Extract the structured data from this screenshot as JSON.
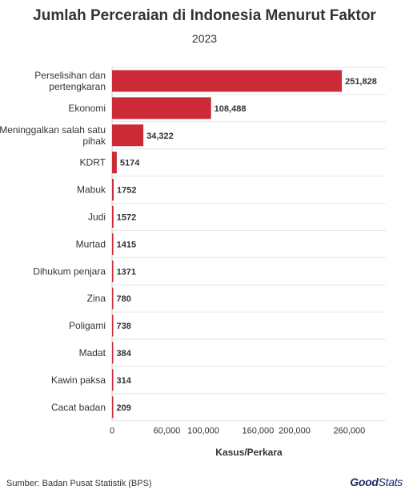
{
  "chart_data": {
    "type": "bar",
    "orientation": "horizontal",
    "title": "Jumlah Perceraian di Indonesia Menurut Faktor",
    "subtitle": "2023",
    "categories": [
      [
        "Perselisihan dan",
        "pertengkaran"
      ],
      [
        "Ekonomi"
      ],
      [
        "Meninggalkan salah satu",
        "pihak"
      ],
      [
        "KDRT"
      ],
      [
        "Mabuk"
      ],
      [
        "Judi"
      ],
      [
        "Murtad"
      ],
      [
        "Dihukum penjara"
      ],
      [
        "Zina"
      ],
      [
        "Poligami"
      ],
      [
        "Madat"
      ],
      [
        "Kawin paksa"
      ],
      [
        "Cacat badan"
      ]
    ],
    "values": [
      251828,
      108488,
      34322,
      5174,
      1752,
      1572,
      1415,
      1371,
      780,
      738,
      384,
      314,
      209
    ],
    "value_labels": [
      "251,828",
      "108,488",
      "34,322",
      "5174",
      "1752",
      "1572",
      "1415",
      "1371",
      "780",
      "738",
      "384",
      "314",
      "209"
    ],
    "xlabel": "Kasus/Perkara",
    "ylabel": "",
    "xlim": [
      0,
      300000
    ],
    "xticks": [
      0,
      60000,
      100000,
      160000,
      200000,
      260000
    ],
    "xtick_labels": [
      "0",
      "60,000",
      "100,000",
      "160,000",
      "200,000",
      "260,000"
    ],
    "grid": true,
    "bar_color": "#cc2a36"
  },
  "footer": {
    "source": "Sumber: Badan Pusat Statistik (BPS)",
    "logo_part1": "Good",
    "logo_part2": "Stats"
  }
}
